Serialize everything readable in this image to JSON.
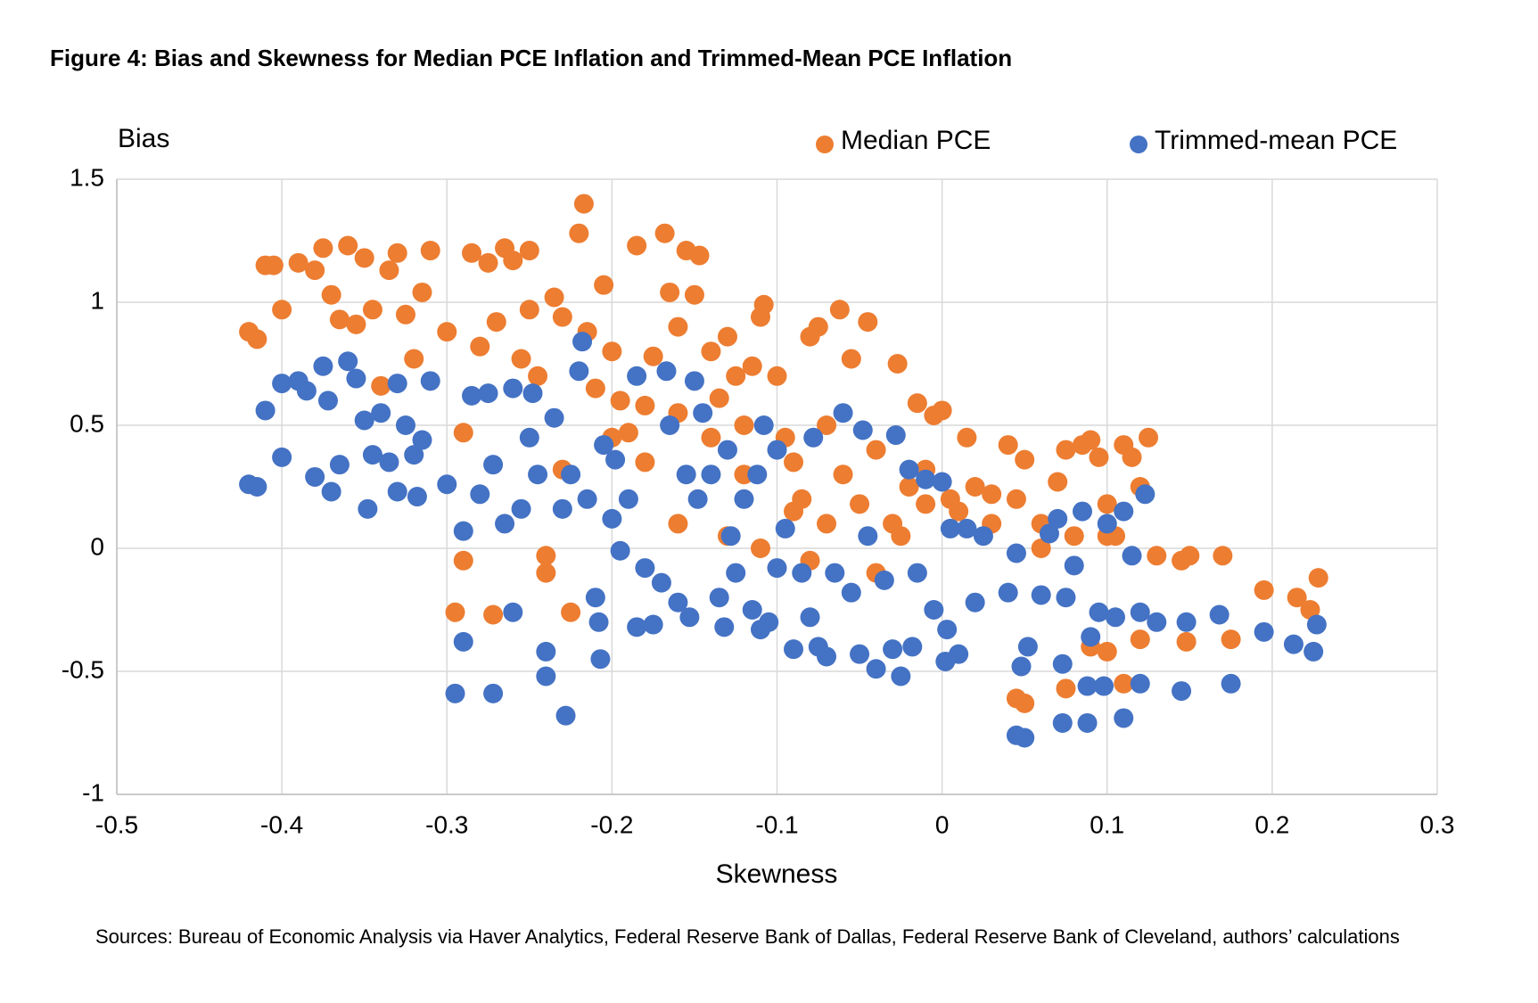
{
  "chart_data": {
    "type": "scatter",
    "title": "Figure 4: Bias and Skewness for Median PCE Inflation and Trimmed-Mean PCE Inflation",
    "x_label": "Skewness",
    "y_label": "Bias",
    "source": "Sources: Bureau of Economic Analysis via Haver Analytics, Federal Reserve Bank of Dallas, Federal Reserve Bank of Cleveland, authors’ calculations",
    "xlim": [
      -0.5,
      0.3
    ],
    "ylim": [
      -1,
      1.5
    ],
    "xticks": [
      -0.5,
      -0.4,
      -0.3,
      -0.2,
      -0.1,
      0,
      0.1,
      0.2,
      0.3
    ],
    "yticks": [
      -1,
      -0.5,
      0,
      0.5,
      1,
      1.5
    ],
    "grid": true,
    "legend": "top-right",
    "series": [
      {
        "name": "Median PCE",
        "color": "#ed7d31",
        "x": [
          -0.42,
          -0.415,
          -0.41,
          -0.405,
          -0.4,
          -0.39,
          -0.38,
          -0.375,
          -0.37,
          -0.365,
          -0.36,
          -0.355,
          -0.35,
          -0.345,
          -0.34,
          -0.335,
          -0.33,
          -0.325,
          -0.32,
          -0.315,
          -0.31,
          -0.3,
          -0.29,
          -0.29,
          -0.295,
          -0.285,
          -0.28,
          -0.275,
          -0.27,
          -0.265,
          -0.26,
          -0.255,
          -0.25,
          -0.25,
          -0.245,
          -0.24,
          -0.24,
          -0.235,
          -0.23,
          -0.225,
          -0.22,
          -0.217,
          -0.215,
          -0.21,
          -0.205,
          -0.2,
          -0.195,
          -0.19,
          -0.185,
          -0.18,
          -0.175,
          -0.168,
          -0.165,
          -0.16,
          -0.155,
          -0.15,
          -0.147,
          -0.14,
          -0.135,
          -0.13,
          -0.125,
          -0.12,
          -0.115,
          -0.11,
          -0.108,
          -0.1,
          -0.095,
          -0.09,
          -0.085,
          -0.08,
          -0.075,
          -0.07,
          -0.062,
          -0.055,
          -0.05,
          -0.045,
          -0.04,
          -0.03,
          -0.027,
          -0.02,
          -0.015,
          -0.01,
          -0.005,
          0,
          0.005,
          0.01,
          0.015,
          0.02,
          0.03,
          0.04,
          0.045,
          0.05,
          0.045,
          0.05,
          0.06,
          0.07,
          0.075,
          0.075,
          0.08,
          0.085,
          0.09,
          0.09,
          0.095,
          0.1,
          0.1,
          0.105,
          0.11,
          0.11,
          0.115,
          0.12,
          0.12,
          0.125,
          0.13,
          0.145,
          0.148,
          0.15,
          0.17,
          0.175,
          0.195,
          0.215,
          0.223,
          0.228,
          -0.272,
          -0.23,
          -0.2,
          -0.18,
          -0.16,
          -0.13,
          -0.11,
          -0.08,
          -0.06,
          -0.04,
          -0.01,
          0.03,
          -0.14,
          -0.16,
          -0.12,
          -0.09,
          -0.07,
          0.06,
          0.1,
          -0.025
        ],
        "values": [
          0.88,
          0.85,
          1.15,
          1.15,
          0.97,
          1.16,
          1.13,
          1.22,
          1.03,
          0.93,
          1.23,
          0.91,
          1.18,
          0.97,
          0.66,
          1.13,
          1.2,
          0.95,
          0.77,
          1.04,
          1.21,
          0.88,
          0.47,
          -0.05,
          -0.26,
          1.2,
          0.82,
          1.16,
          0.92,
          1.22,
          1.17,
          0.77,
          0.97,
          1.21,
          0.7,
          -0.03,
          -0.1,
          1.02,
          0.94,
          -0.26,
          1.28,
          1.4,
          0.88,
          0.65,
          1.07,
          0.8,
          0.6,
          0.47,
          1.23,
          0.58,
          0.78,
          1.28,
          1.04,
          0.9,
          1.21,
          1.03,
          1.19,
          0.8,
          0.61,
          0.86,
          0.7,
          0.5,
          0.74,
          0.94,
          0.99,
          0.7,
          0.45,
          0.35,
          0.2,
          0.86,
          0.9,
          0.1,
          0.97,
          0.77,
          0.18,
          0.92,
          0.4,
          0.1,
          0.75,
          0.25,
          0.59,
          0.32,
          0.54,
          0.56,
          0.2,
          0.15,
          0.45,
          0.25,
          0.1,
          0.42,
          0.2,
          0.36,
          -0.61,
          -0.63,
          0.1,
          0.27,
          0.4,
          -0.57,
          0.05,
          0.42,
          0.44,
          -0.4,
          0.37,
          -0.42,
          0.18,
          0.05,
          0.42,
          -0.55,
          0.37,
          0.25,
          -0.37,
          0.45,
          -0.03,
          -0.05,
          -0.38,
          -0.03,
          -0.03,
          -0.37,
          -0.17,
          -0.2,
          -0.25,
          -0.12,
          -0.27,
          0.32,
          0.45,
          0.35,
          0.1,
          0.05,
          0,
          -0.05,
          0.3,
          -0.1,
          0.18,
          0.22,
          0.45,
          0.55,
          0.3,
          0.15,
          0.5,
          0,
          0.05,
          0.05
        ]
      },
      {
        "name": "Trimmed-mean PCE",
        "color": "#4472c4",
        "x": [
          -0.42,
          -0.415,
          -0.41,
          -0.4,
          -0.4,
          -0.39,
          -0.385,
          -0.38,
          -0.375,
          -0.372,
          -0.37,
          -0.365,
          -0.36,
          -0.355,
          -0.35,
          -0.348,
          -0.345,
          -0.34,
          -0.335,
          -0.33,
          -0.33,
          -0.325,
          -0.32,
          -0.318,
          -0.315,
          -0.31,
          -0.3,
          -0.295,
          -0.29,
          -0.29,
          -0.285,
          -0.28,
          -0.275,
          -0.272,
          -0.272,
          -0.265,
          -0.26,
          -0.26,
          -0.255,
          -0.25,
          -0.248,
          -0.245,
          -0.24,
          -0.24,
          -0.235,
          -0.23,
          -0.228,
          -0.225,
          -0.22,
          -0.218,
          -0.215,
          -0.21,
          -0.208,
          -0.207,
          -0.205,
          -0.2,
          -0.198,
          -0.195,
          -0.19,
          -0.185,
          -0.185,
          -0.18,
          -0.175,
          -0.17,
          -0.167,
          -0.165,
          -0.16,
          -0.155,
          -0.153,
          -0.15,
          -0.148,
          -0.145,
          -0.14,
          -0.135,
          -0.132,
          -0.13,
          -0.128,
          -0.125,
          -0.12,
          -0.115,
          -0.112,
          -0.11,
          -0.108,
          -0.105,
          -0.1,
          -0.1,
          -0.095,
          -0.09,
          -0.085,
          -0.08,
          -0.078,
          -0.075,
          -0.07,
          -0.065,
          -0.06,
          -0.055,
          -0.05,
          -0.048,
          -0.045,
          -0.04,
          -0.035,
          -0.03,
          -0.028,
          -0.025,
          -0.02,
          -0.018,
          -0.015,
          -0.01,
          -0.005,
          0,
          0.002,
          0.003,
          0.005,
          0.01,
          0.015,
          0.02,
          0.025,
          0.04,
          0.045,
          0.045,
          0.048,
          0.05,
          0.052,
          0.06,
          0.065,
          0.07,
          0.073,
          0.073,
          0.075,
          0.08,
          0.085,
          0.088,
          0.088,
          0.09,
          0.095,
          0.098,
          0.1,
          0.105,
          0.11,
          0.11,
          0.115,
          0.12,
          0.12,
          0.123,
          0.13,
          0.145,
          0.148,
          0.168,
          0.175,
          0.195,
          0.213,
          0.225,
          0.227
        ],
        "values": [
          0.26,
          0.25,
          0.56,
          0.67,
          0.37,
          0.68,
          0.64,
          0.29,
          0.74,
          0.6,
          0.23,
          0.34,
          0.76,
          0.69,
          0.52,
          0.16,
          0.38,
          0.55,
          0.35,
          0.67,
          0.23,
          0.5,
          0.38,
          0.21,
          0.44,
          0.68,
          0.26,
          -0.59,
          0.07,
          -0.38,
          0.62,
          0.22,
          0.63,
          0.34,
          -0.59,
          0.1,
          -0.26,
          0.65,
          0.16,
          0.45,
          0.63,
          0.3,
          -0.42,
          -0.52,
          0.53,
          0.16,
          -0.68,
          0.3,
          0.72,
          0.84,
          0.2,
          -0.2,
          -0.3,
          -0.45,
          0.42,
          0.12,
          0.36,
          -0.01,
          0.2,
          0.7,
          -0.32,
          -0.08,
          -0.31,
          -0.14,
          0.72,
          0.5,
          -0.22,
          0.3,
          -0.28,
          0.68,
          0.2,
          0.55,
          0.3,
          -0.2,
          -0.32,
          0.4,
          0.05,
          -0.1,
          0.2,
          -0.25,
          0.3,
          -0.33,
          0.5,
          -0.3,
          0.4,
          -0.08,
          0.08,
          -0.41,
          -0.1,
          -0.28,
          0.45,
          -0.4,
          -0.44,
          -0.1,
          0.55,
          -0.18,
          -0.43,
          0.48,
          0.05,
          -0.49,
          -0.13,
          -0.41,
          0.46,
          -0.52,
          0.32,
          -0.4,
          -0.1,
          0.28,
          -0.25,
          0.27,
          -0.46,
          -0.33,
          0.08,
          -0.43,
          0.08,
          -0.22,
          0.05,
          -0.18,
          -0.02,
          -0.76,
          -0.48,
          -0.77,
          -0.4,
          -0.19,
          0.06,
          0.12,
          -0.47,
          -0.71,
          -0.2,
          -0.07,
          0.15,
          -0.56,
          -0.71,
          -0.36,
          -0.26,
          -0.56,
          0.1,
          -0.28,
          -0.69,
          0.15,
          -0.03,
          -0.55,
          -0.26,
          0.22,
          -0.3,
          -0.58,
          -0.3,
          -0.27,
          -0.55,
          -0.34,
          -0.39,
          -0.42,
          -0.31
        ]
      }
    ]
  }
}
